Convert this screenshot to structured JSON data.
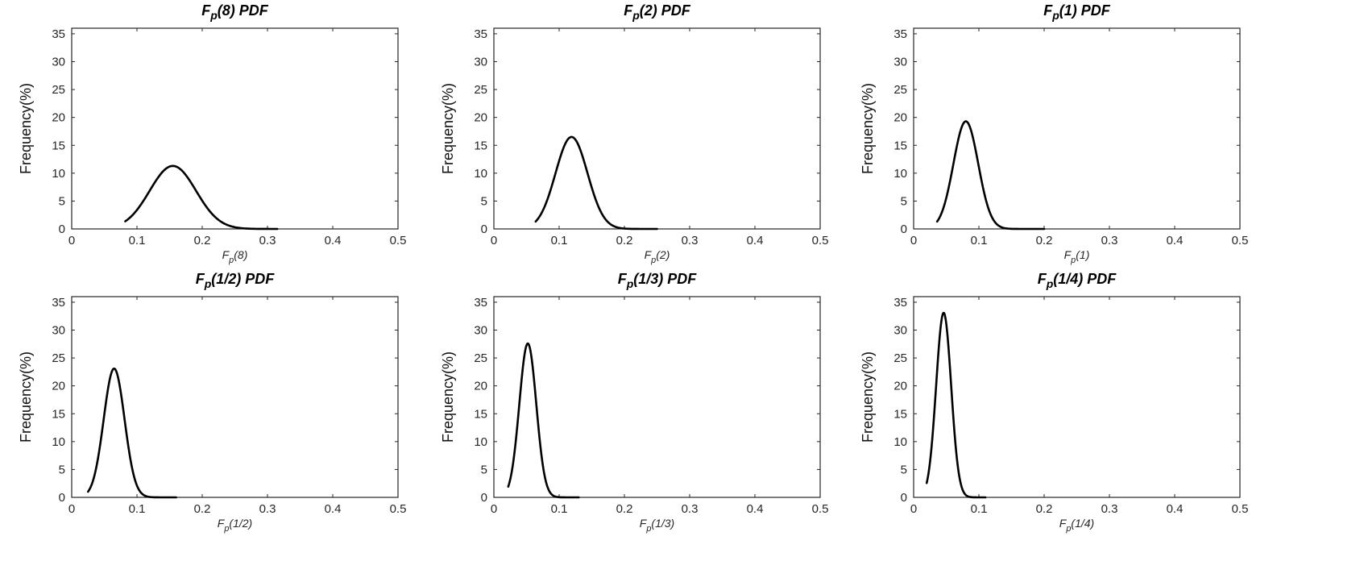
{
  "chart_data": [
    {
      "type": "line",
      "title": "F_p(8) PDF",
      "title_parts": {
        "main": "F",
        "sub": "p",
        "rest": "(8) PDF"
      },
      "xlabel": "F_p(8)",
      "xlabel_parts": {
        "main": "F",
        "sub": "p",
        "rest": "(8)"
      },
      "ylabel": "Frequency(%)",
      "xlim": [
        0,
        0.5
      ],
      "ylim": [
        0,
        36
      ],
      "xticks": [
        "0",
        "0.1",
        "0.2",
        "0.3",
        "0.4",
        "0.5"
      ],
      "yticks": [
        "0",
        "5",
        "10",
        "15",
        "20",
        "25",
        "30",
        "35"
      ],
      "grid": false,
      "series": [
        {
          "mean": 0.155,
          "sd": 0.0355,
          "x_start": 0.082,
          "x_end": 0.315,
          "peak": 11.3
        }
      ]
    },
    {
      "type": "line",
      "title": "F_p(2) PDF",
      "title_parts": {
        "main": "F",
        "sub": "p",
        "rest": "(2) PDF"
      },
      "xlabel": "F_p(2)",
      "xlabel_parts": {
        "main": "F",
        "sub": "p",
        "rest": "(2)"
      },
      "ylabel": "Frequency(%)",
      "xlim": [
        0,
        0.5
      ],
      "ylim": [
        0,
        36
      ],
      "xticks": [
        "0",
        "0.1",
        "0.2",
        "0.3",
        "0.4",
        "0.5"
      ],
      "yticks": [
        "0",
        "5",
        "10",
        "15",
        "20",
        "25",
        "30",
        "35"
      ],
      "grid": false,
      "series": [
        {
          "mean": 0.119,
          "sd": 0.0245,
          "x_start": 0.064,
          "x_end": 0.25,
          "peak": 16.5
        }
      ]
    },
    {
      "type": "line",
      "title": "F_p(1) PDF",
      "title_parts": {
        "main": "F",
        "sub": "p",
        "rest": "(1) PDF"
      },
      "xlabel": "F_p(1)",
      "xlabel_parts": {
        "main": "F",
        "sub": "p",
        "rest": "(1)"
      },
      "ylabel": "Frequency(%)",
      "xlim": [
        0,
        0.5
      ],
      "ylim": [
        0,
        36
      ],
      "xticks": [
        "0",
        "0.1",
        "0.2",
        "0.3",
        "0.4",
        "0.5"
      ],
      "yticks": [
        "0",
        "5",
        "10",
        "15",
        "20",
        "25",
        "30",
        "35"
      ],
      "grid": false,
      "series": [
        {
          "mean": 0.08,
          "sd": 0.019,
          "x_start": 0.036,
          "x_end": 0.2,
          "peak": 19.3
        }
      ]
    },
    {
      "type": "line",
      "title": "F_p(1/2) PDF",
      "title_parts": {
        "main": "F",
        "sub": "p",
        "rest": "(1/2) PDF"
      },
      "xlabel": "F_p(1/2)",
      "xlabel_parts": {
        "main": "F",
        "sub": "p",
        "rest": "(1/2)"
      },
      "ylabel": "Frequency(%)",
      "xlim": [
        0,
        0.5
      ],
      "ylim": [
        0,
        36
      ],
      "xticks": [
        "0",
        "0.1",
        "0.2",
        "0.3",
        "0.4",
        "0.5"
      ],
      "yticks": [
        "0",
        "5",
        "10",
        "15",
        "20",
        "25",
        "30",
        "35"
      ],
      "grid": false,
      "series": [
        {
          "mean": 0.065,
          "sd": 0.016,
          "x_start": 0.025,
          "x_end": 0.16,
          "peak": 23.1
        }
      ]
    },
    {
      "type": "line",
      "title": "F_p(1/3) PDF",
      "title_parts": {
        "main": "F",
        "sub": "p",
        "rest": "(1/3) PDF"
      },
      "xlabel": "F_p(1/3)",
      "xlabel_parts": {
        "main": "F",
        "sub": "p",
        "rest": "(1/3)"
      },
      "ylabel": "Frequency(%)",
      "xlim": [
        0,
        0.5
      ],
      "ylim": [
        0,
        36
      ],
      "xticks": [
        "0",
        "0.1",
        "0.2",
        "0.3",
        "0.4",
        "0.5"
      ],
      "yticks": [
        "0",
        "5",
        "10",
        "15",
        "20",
        "25",
        "30",
        "35"
      ],
      "grid": false,
      "series": [
        {
          "mean": 0.052,
          "sd": 0.013,
          "x_start": 0.022,
          "x_end": 0.13,
          "peak": 27.6
        }
      ]
    },
    {
      "type": "line",
      "title": "F_p(1/4) PDF",
      "title_parts": {
        "main": "F",
        "sub": "p",
        "rest": "(1/4) PDF"
      },
      "xlabel": "F_p(1/4)",
      "xlabel_parts": {
        "main": "F",
        "sub": "p",
        "rest": "(1/4)"
      },
      "ylabel": "Frequency(%)",
      "xlim": [
        0,
        0.5
      ],
      "ylim": [
        0,
        36
      ],
      "xticks": [
        "0",
        "0.1",
        "0.2",
        "0.3",
        "0.4",
        "0.5"
      ],
      "yticks": [
        "0",
        "5",
        "10",
        "15",
        "20",
        "25",
        "30",
        "35"
      ],
      "grid": false,
      "series": [
        {
          "mean": 0.046,
          "sd": 0.0115,
          "x_start": 0.02,
          "x_end": 0.11,
          "peak": 33.1
        }
      ]
    }
  ],
  "colors": {
    "curve": "#000000",
    "axis": "#262626",
    "background": "#ffffff"
  }
}
